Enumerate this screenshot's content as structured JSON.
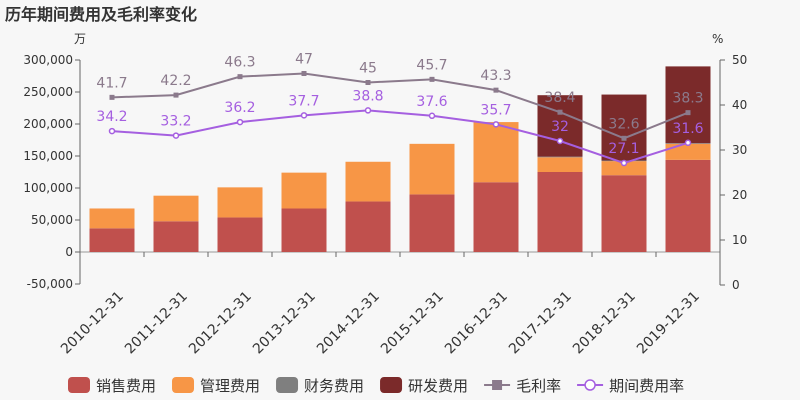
{
  "chart_data": {
    "type": "bar",
    "title": "历年期间费用及毛利率变化",
    "left_unit": "万",
    "right_unit": "%",
    "categories": [
      "2010-12-31",
      "2011-12-31",
      "2012-12-31",
      "2013-12-31",
      "2014-12-31",
      "2015-12-31",
      "2016-12-31",
      "2017-12-31",
      "2018-12-31",
      "2019-12-31"
    ],
    "left_ylim": [
      -50000,
      300000
    ],
    "left_ticks": [
      "-50,000",
      "0",
      "50,000",
      "100,000",
      "150,000",
      "200,000",
      "250,000",
      "300,000"
    ],
    "left_tick_values": [
      -50000,
      0,
      50000,
      100000,
      150000,
      200000,
      250000,
      300000
    ],
    "right_ylim": [
      0,
      50
    ],
    "right_ticks": [
      "0",
      "10",
      "20",
      "30",
      "40",
      "50"
    ],
    "right_tick_values": [
      0,
      10,
      20,
      30,
      40,
      50
    ],
    "series": [
      {
        "name": "销售费用",
        "kind": "bar",
        "color": "#c0504d",
        "values": [
          37000,
          48000,
          54000,
          68000,
          79000,
          90000,
          109000,
          125000,
          120000,
          144000
        ]
      },
      {
        "name": "管理费用",
        "kind": "bar",
        "color": "#f79646",
        "values": [
          31000,
          40000,
          47000,
          56000,
          62000,
          79000,
          94000,
          23000,
          22000,
          25000
        ]
      },
      {
        "name": "财务费用",
        "kind": "bar",
        "color": "#7f7f7f",
        "values": [
          0,
          0,
          0,
          0,
          0,
          0,
          0,
          1000,
          1000,
          1000
        ]
      },
      {
        "name": "研发费用",
        "kind": "bar",
        "color": "#7b2a2a",
        "values": [
          0,
          0,
          0,
          0,
          0,
          0,
          0,
          96000,
          103000,
          120000
        ]
      },
      {
        "name": "毛利率",
        "kind": "line",
        "axis": "right",
        "color": "#8b7a8c",
        "values": [
          41.7,
          42.2,
          46.3,
          47,
          45,
          45.7,
          43.3,
          38.4,
          32.6,
          38.3
        ],
        "labels": [
          "41.7",
          "42.2",
          "46.3",
          "47",
          "45",
          "45.7",
          "43.3",
          "38.4",
          "32.6",
          "38.3"
        ]
      },
      {
        "name": "期间费用率",
        "kind": "line",
        "axis": "right",
        "color": "#a55fe0",
        "values": [
          34.2,
          33.2,
          36.2,
          37.7,
          38.8,
          37.6,
          35.7,
          32,
          27.1,
          31.6
        ],
        "labels": [
          "34.2",
          "33.2",
          "36.2",
          "37.7",
          "38.8",
          "37.6",
          "35.7",
          "32",
          "27.1",
          "31.6"
        ]
      }
    ]
  }
}
